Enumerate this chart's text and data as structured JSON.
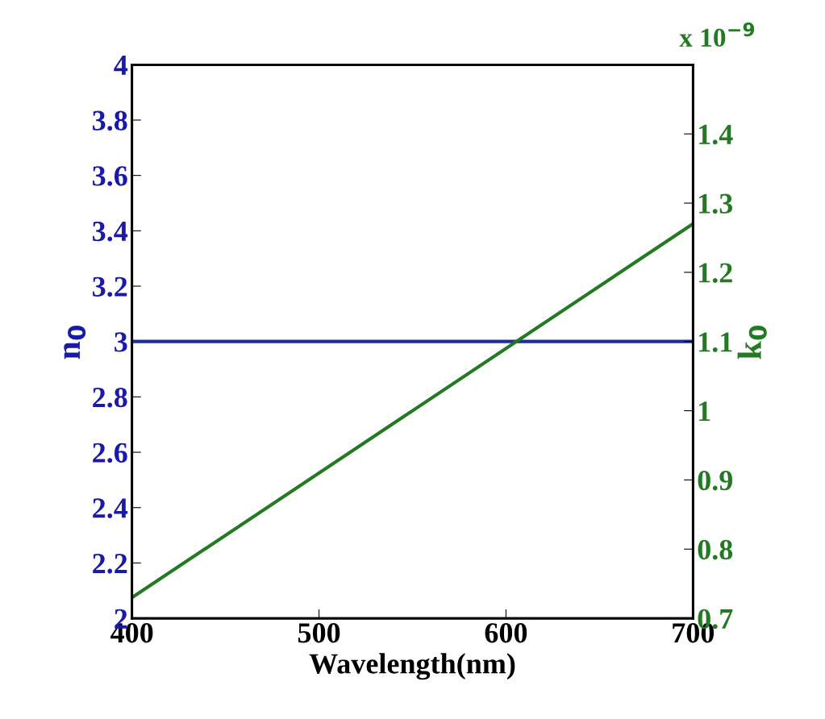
{
  "chart_data": {
    "type": "line",
    "xlabel": "Wavelength(nm)",
    "ylabel": "n$_{0}$",
    "y2label": "k$_{0}$",
    "x": [
      400,
      700
    ],
    "series": [
      {
        "color": "#1c2f99",
        "values": [
          3,
          3
        ]
      },
      {
        "color": "#237a23",
        "values": [
          0.73,
          1.27
        ],
        "axis": "y2"
      }
    ],
    "xlim": [
      400,
      700
    ],
    "xticks": [
      400,
      500,
      600,
      700
    ],
    "ylim": [
      2,
      4
    ],
    "yticks": [
      2,
      2.2,
      2.4,
      2.6,
      2.8,
      3,
      3.2,
      3.4,
      3.6,
      3.8,
      4
    ],
    "y2lim": [
      0.7,
      1.5
    ],
    "y2ticks": [
      0.7,
      0.8,
      0.9,
      1,
      1.1,
      1.2,
      1.3,
      1.4
    ],
    "annotations": [
      "x 10$^{−9}$"
    ],
    "grid": false,
    "legend": false,
    "marker": "none",
    "line_style": "solid"
  }
}
